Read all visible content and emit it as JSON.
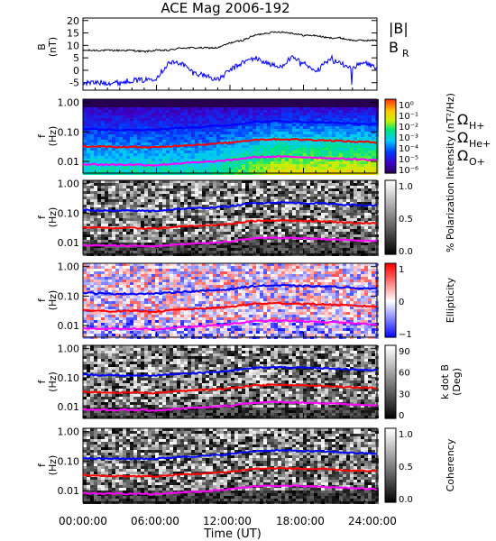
{
  "title": "ACE Mag 2006-192",
  "time_axis": {
    "ticks": [
      "00:00:00",
      "06:00:00",
      "12:00:00",
      "18:00:00",
      "24:00:00"
    ],
    "label": "Time (UT)"
  },
  "legend_top": {
    "b_total": "|B|",
    "b_r": "B",
    "b_r_sub": "R"
  },
  "legend_gyro": [
    {
      "omega": "Ω",
      "sub": "H+",
      "color": "#0000ff"
    },
    {
      "omega": "Ω",
      "sub": "He+",
      "color": "#ff0000"
    },
    {
      "omega": "Ω",
      "sub": "O+",
      "color": "#ff00ff"
    }
  ],
  "colors": {
    "b_total": "#000000",
    "b_r": "#0000ff",
    "proton": "#0000ff",
    "helium": "#ff0000",
    "oxygen": "#ff00ff"
  },
  "chart_data": [
    {
      "type": "line",
      "panel": "magnetic-field",
      "ylabel": "B",
      "yunit": "(nT)",
      "ylim": [
        -8,
        21
      ],
      "yticks": [
        "20",
        "15",
        "10",
        "5",
        "0",
        "-5"
      ],
      "x_hours": [
        0,
        1,
        2,
        3,
        4,
        5,
        6,
        7,
        8,
        9,
        10,
        11,
        12,
        13,
        14,
        15,
        16,
        17,
        18,
        19,
        20,
        21,
        22,
        23,
        24
      ],
      "series": [
        {
          "name": "|B|",
          "values": [
            8,
            8,
            8,
            8,
            8,
            7.5,
            8,
            8,
            9,
            9,
            9,
            9,
            11,
            12,
            14,
            15,
            15.5,
            15,
            14,
            14,
            13,
            13,
            12,
            12,
            12
          ]
        },
        {
          "name": "BR",
          "values": [
            -5,
            -5,
            -5,
            -5,
            -4,
            -4,
            -3,
            3,
            3,
            -1,
            -2,
            -4,
            0,
            3,
            5,
            3,
            1,
            5,
            3,
            -1,
            4,
            3,
            1,
            3,
            1
          ]
        }
      ]
    },
    {
      "type": "heatmap",
      "panel": "intensity",
      "ylabel": "f",
      "yunit": "(Hz)",
      "yticks": [
        "1.00",
        "0.10",
        "0.01"
      ],
      "colorbar_label": "Intensity (nT²/Hz)",
      "colorbar_ticks": [
        "10⁰",
        "10⁻¹",
        "10⁻²",
        "10⁻³",
        "10⁻⁴",
        "10⁻⁵",
        "10⁻⁶"
      ]
    },
    {
      "type": "heatmap",
      "panel": "polarization",
      "ylabel": "f",
      "yunit": "(Hz)",
      "yticks": [
        "1.00",
        "0.10",
        "0.01"
      ],
      "colorbar_label": "% Polarization",
      "colorbar_ticks": [
        "1.0",
        "0.5",
        "0.0"
      ]
    },
    {
      "type": "heatmap",
      "panel": "ellipticity",
      "ylabel": "f",
      "yunit": "(Hz)",
      "yticks": [
        "1.00",
        "0.10",
        "0.01"
      ],
      "colorbar_label": "Ellipticity",
      "colorbar_ticks": [
        "1",
        "0",
        "−1"
      ]
    },
    {
      "type": "heatmap",
      "panel": "k-dot-b",
      "ylabel": "f",
      "yunit": "(Hz)",
      "yticks": [
        "1.00",
        "0.10",
        "0.01"
      ],
      "colorbar_label": "k dot B",
      "colorbar_unit": "(Deg)",
      "colorbar_ticks": [
        "90",
        "60",
        "30",
        "0"
      ]
    },
    {
      "type": "heatmap",
      "panel": "coherency",
      "ylabel": "f",
      "yunit": "(Hz)",
      "yticks": [
        "1.00",
        "0.10",
        "0.01"
      ],
      "colorbar_label": "Coherency",
      "colorbar_ticks": [
        "1.0",
        "0.5",
        "0.0"
      ]
    }
  ],
  "gyrofrequency_lines": {
    "x_hours": [
      0,
      2,
      4,
      6,
      8,
      10,
      12,
      14,
      16,
      18,
      20,
      22,
      24
    ],
    "proton_hz": [
      0.13,
      0.12,
      0.12,
      0.12,
      0.14,
      0.15,
      0.17,
      0.22,
      0.23,
      0.22,
      0.21,
      0.19,
      0.18
    ],
    "helium_hz": [
      0.033,
      0.031,
      0.031,
      0.03,
      0.035,
      0.038,
      0.043,
      0.055,
      0.057,
      0.055,
      0.052,
      0.047,
      0.045
    ],
    "oxygen_hz": [
      0.008,
      0.0078,
      0.0078,
      0.0075,
      0.0087,
      0.0095,
      0.011,
      0.014,
      0.0145,
      0.014,
      0.013,
      0.012,
      0.011
    ]
  }
}
